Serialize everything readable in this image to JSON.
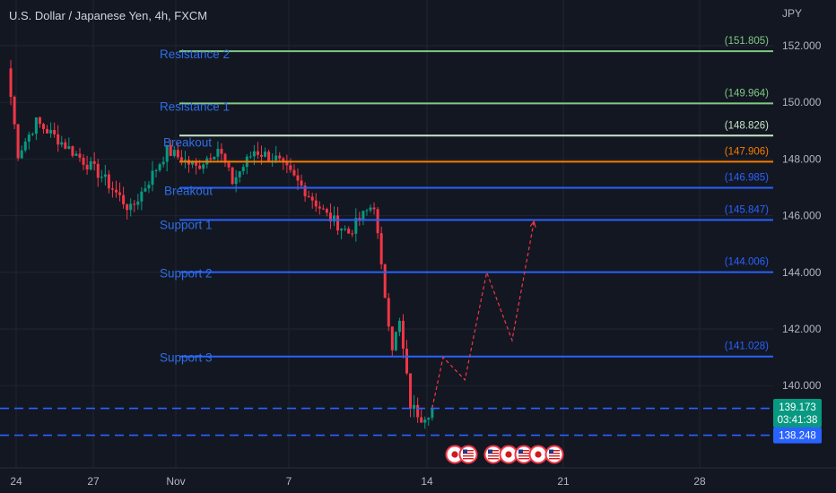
{
  "header": {
    "title": "U.S. Dollar / Japanese Yen, 4h, FXCM",
    "currency_unit": "JPY"
  },
  "colors": {
    "background": "#131722",
    "grid": "#1f2430",
    "up_candle": "#089981",
    "down_candle": "#f23645",
    "support_blue": "#2962ff",
    "resistance_green": "#81c784",
    "pivot_orange": "#f57c00",
    "pivot_pale_green": "#c8e6c9",
    "projection_red": "#f23645",
    "current_price_green": "#089981"
  },
  "annotations": {
    "zones": [
      {
        "label": "Resistance 2",
        "price": 151.805,
        "price_label": "(151.805)",
        "color": "#81c784"
      },
      {
        "label": "Resistance 1",
        "price": 149.964,
        "price_label": "(149.964)",
        "color": "#81c784"
      },
      {
        "label": "Breakout",
        "price": 148.826,
        "price_label": "(148.826)",
        "color": "#c8e6c9"
      },
      {
        "label": "",
        "price": 147.906,
        "price_label": "(147.906)",
        "color": "#f57c00"
      },
      {
        "label": "Breakout",
        "price": 146.985,
        "price_label": "(146.985)",
        "color": "#2962ff"
      },
      {
        "label": "Support 1",
        "price": 145.847,
        "price_label": "(145.847)",
        "color": "#2962ff"
      },
      {
        "label": "Support 2",
        "price": 144.006,
        "price_label": "(144.006)",
        "color": "#2962ff"
      },
      {
        "label": "Support 3",
        "price": 141.028,
        "price_label": "(141.028)",
        "color": "#2962ff"
      }
    ],
    "dashed_levels": [
      139.197,
      138.248
    ],
    "price_tags": {
      "upper": "139.197",
      "current_price": "139.173",
      "countdown": "03:41:38",
      "lower": "138.248"
    },
    "event_icons": [
      "jp-flag",
      "us-flag",
      "us-flag",
      "jp-flag",
      "us-flag",
      "jp-flag",
      "us-flag"
    ]
  },
  "chart_data": {
    "type": "candlestick",
    "title": "U.S. Dollar / Japanese Yen, 4h, FXCM",
    "y_axis": {
      "unit": "JPY",
      "ticks": [
        "152.000",
        "150.000",
        "148.000",
        "146.000",
        "144.000",
        "142.000",
        "140.000"
      ],
      "range": [
        137.0,
        153.0
      ]
    },
    "x_axis": {
      "ticks": [
        "24",
        "27",
        "Nov",
        "7",
        "14",
        "21",
        "28"
      ]
    },
    "price_segments": [
      {
        "from_bar": 0,
        "to_bar": 3,
        "from": 151.2,
        "to": 148.2
      },
      {
        "from_bar": 3,
        "to_bar": 8,
        "from": 148.2,
        "to": 149.3
      },
      {
        "from_bar": 8,
        "to_bar": 14,
        "from": 149.3,
        "to": 148.7
      },
      {
        "from_bar": 14,
        "to_bar": 26,
        "from": 148.7,
        "to": 147.4
      },
      {
        "from_bar": 26,
        "to_bar": 34,
        "from": 147.4,
        "to": 146.2
      },
      {
        "from_bar": 34,
        "to_bar": 44,
        "from": 146.2,
        "to": 148.3
      },
      {
        "from_bar": 44,
        "to_bar": 52,
        "from": 148.3,
        "to": 147.7
      },
      {
        "from_bar": 52,
        "to_bar": 58,
        "from": 147.7,
        "to": 148.4
      },
      {
        "from_bar": 58,
        "to_bar": 62,
        "from": 148.4,
        "to": 147.2
      },
      {
        "from_bar": 62,
        "to_bar": 68,
        "from": 147.2,
        "to": 148.3
      },
      {
        "from_bar": 68,
        "to_bar": 74,
        "from": 148.3,
        "to": 148.0
      },
      {
        "from_bar": 74,
        "to_bar": 82,
        "from": 148.0,
        "to": 146.9
      },
      {
        "from_bar": 82,
        "to_bar": 88,
        "from": 146.9,
        "to": 146.0
      },
      {
        "from_bar": 88,
        "to_bar": 94,
        "from": 146.0,
        "to": 145.4
      },
      {
        "from_bar": 94,
        "to_bar": 100,
        "from": 145.4,
        "to": 146.3
      },
      {
        "from_bar": 100,
        "to_bar": 101,
        "from": 146.3,
        "to": 146.4
      },
      {
        "from_bar": 101,
        "to_bar": 103,
        "from": 146.4,
        "to": 144.1
      },
      {
        "from_bar": 103,
        "to_bar": 106,
        "from": 144.1,
        "to": 141.4
      },
      {
        "from_bar": 106,
        "to_bar": 108,
        "from": 141.4,
        "to": 142.2
      },
      {
        "from_bar": 108,
        "to_bar": 111,
        "from": 142.2,
        "to": 139.3
      },
      {
        "from_bar": 111,
        "to_bar": 114,
        "from": 139.3,
        "to": 138.9
      },
      {
        "from_bar": 114,
        "to_bar": 117,
        "from": 138.9,
        "to": 139.17
      }
    ],
    "projection": [
      {
        "bar": 117,
        "price": 139.2
      },
      {
        "bar": 120,
        "price": 141.0
      },
      {
        "bar": 126,
        "price": 140.2
      },
      {
        "bar": 132,
        "price": 144.0
      },
      {
        "bar": 139,
        "price": 141.6
      },
      {
        "bar": 145,
        "price": 145.8
      }
    ]
  }
}
